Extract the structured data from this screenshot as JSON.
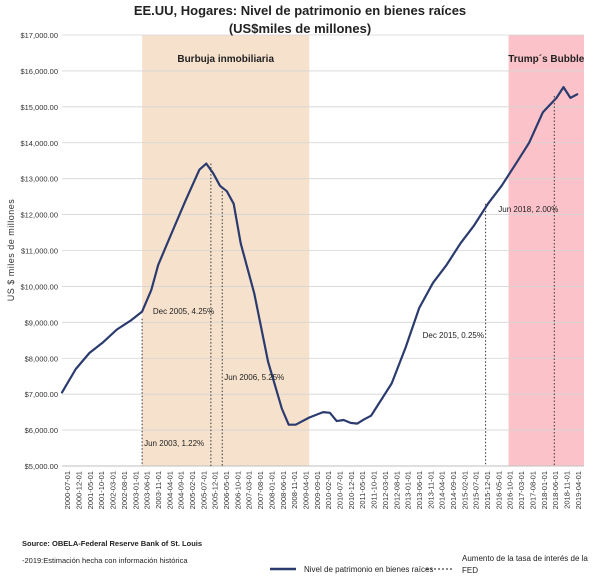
{
  "chart_data": {
    "type": "line",
    "title": "EE.UU, Hogares:  Nivel de patrimonio  en bienes raíces",
    "subtitle": "(US$miles de millones)",
    "ylabel": "US $ miles de millones",
    "xlabel": "",
    "ylim": [
      5000,
      17000
    ],
    "y_ticks": [
      "$5,000.00",
      "$6,000.00",
      "$7,000.00",
      "$8,000.00",
      "$9,000.00",
      "$10,000.00",
      "$11,000.00",
      "$12,000.00",
      "$13,000.00",
      "$14,000.00",
      "$15,000.00",
      "$16,000.00",
      "$17,000.00"
    ],
    "x_ticks": [
      "2000-07-01",
      "2000-12-01",
      "2001-05-01",
      "2001-10-01",
      "2002-03-01",
      "2002-08-01",
      "2003-01-01",
      "2003-06-01",
      "2003-11-01",
      "2004-04-01",
      "2004-09-01",
      "2005-02-01",
      "2005-07-01",
      "2005-12-01",
      "2006-05-01",
      "2006-10-01",
      "2007-03-01",
      "2007-08-01",
      "2008-01-01",
      "2008-06-01",
      "2008-11-01",
      "2009-04-01",
      "2009-09-01",
      "2010-02-01",
      "2010-07-01",
      "2010-12-01",
      "2011-05-01",
      "2011-10-01",
      "2012-03-01",
      "2012-08-01",
      "2013-01-01",
      "2013-06-01",
      "2013-11-01",
      "2014-04-01",
      "2014-09-01",
      "2015-02-01",
      "2015-07-01",
      "2015-12-01",
      "2016-05-01",
      "2016-10-01",
      "2017-03-01",
      "2017-08-01",
      "2018-01-01",
      "2018-06-01",
      "2018-11-01",
      "2019-04-01"
    ],
    "grid": true,
    "legend_position": "bottom",
    "series": [
      {
        "name": "Nivel de patrimonio en bienes raíces",
        "color": "#2b3b6e",
        "style": "solid",
        "x": [
          "2000-07-01",
          "2001-01-01",
          "2001-07-01",
          "2002-01-01",
          "2002-07-01",
          "2003-01-01",
          "2003-06-01",
          "2003-10-01",
          "2004-01-01",
          "2004-07-01",
          "2005-01-01",
          "2005-07-01",
          "2005-10-01",
          "2006-01-01",
          "2006-04-01",
          "2006-07-01",
          "2006-10-01",
          "2007-01-01",
          "2007-07-01",
          "2008-01-01",
          "2008-07-01",
          "2008-10-01",
          "2009-01-01",
          "2009-07-01",
          "2010-01-01",
          "2010-04-01",
          "2010-07-01",
          "2010-10-01",
          "2011-01-01",
          "2011-04-01",
          "2011-07-01",
          "2011-10-01",
          "2012-01-01",
          "2012-07-01",
          "2013-01-01",
          "2013-07-01",
          "2014-01-01",
          "2014-07-01",
          "2015-01-01",
          "2015-07-01",
          "2016-01-01",
          "2016-07-01",
          "2017-01-01",
          "2017-07-01",
          "2018-01-01",
          "2018-07-01",
          "2018-10-01",
          "2019-01-01",
          "2019-04-01"
        ],
        "values": [
          7050,
          7700,
          8150,
          8450,
          8800,
          9050,
          9300,
          9900,
          10600,
          11500,
          12400,
          13250,
          13420,
          13150,
          12800,
          12650,
          12300,
          11200,
          9800,
          7900,
          6600,
          6150,
          6150,
          6350,
          6500,
          6480,
          6250,
          6280,
          6200,
          6180,
          6300,
          6400,
          6700,
          7300,
          8300,
          9400,
          10100,
          10600,
          11200,
          11700,
          12300,
          12800,
          13400,
          14000,
          14850,
          15250,
          15550,
          15250,
          15350
        ]
      }
    ],
    "regions": [
      {
        "label": "Burbuja inmobiliaria",
        "from": "2003-06-01",
        "to": "2009-07-01",
        "color": "#f6e2cc"
      },
      {
        "label": "Trump´s Bubble",
        "from": "2016-10-01",
        "to": "2019-07-01",
        "color": "#fbc3c9"
      }
    ],
    "fed_rates": {
      "series_name": "Aumento de la tasa de interés de la FED",
      "events": [
        {
          "date": "2003-06-01",
          "label": "Jun 2003,  1.22%",
          "value": 9100
        },
        {
          "date": "2005-12-01",
          "label": "Dec 2005,  4.25%",
          "value": 13420
        },
        {
          "date": "2006-05-01",
          "label": "Jun 2006,  5.25%",
          "value": 12750
        },
        {
          "date": "2015-12-01",
          "label": "Dec 2015,  0.25%",
          "value": 12300
        },
        {
          "date": "2018-06-01",
          "label": "Jun 2018,  2.00%",
          "value": 15300
        }
      ]
    },
    "source_line1": "Source: OBELA-Federal Reserve Bank of St. Louis",
    "source_line2": "-2019:Estimación hecha con información histórica"
  }
}
